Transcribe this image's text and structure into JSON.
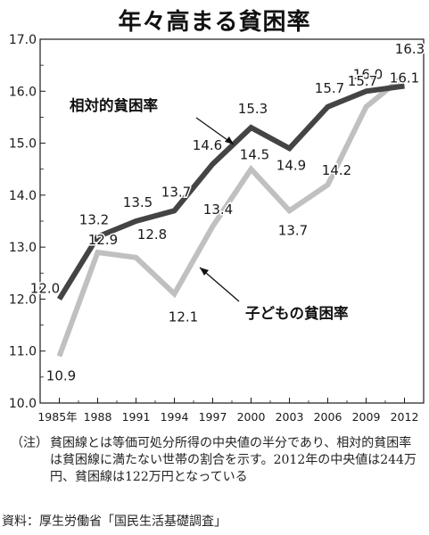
{
  "header": {
    "title": "年々高まる貧困率"
  },
  "chart_data": {
    "type": "line",
    "x": [
      "1985年",
      "1988",
      "1991",
      "1994",
      "1997",
      "2000",
      "2003",
      "2006",
      "2009",
      "2012"
    ],
    "ylim": [
      10.0,
      17.0
    ],
    "yticks": [
      "10.0",
      "11.0",
      "12.0",
      "13.0",
      "14.0",
      "15.0",
      "16.0",
      "17.0"
    ],
    "grid": false,
    "series": [
      {
        "name": "相対的貧困率",
        "color": "#444444",
        "values": [
          12.0,
          13.2,
          13.5,
          13.7,
          14.6,
          15.3,
          14.9,
          15.7,
          16.0,
          16.1
        ],
        "labels": [
          "12.0",
          "13.2",
          "13.5",
          "13.7",
          "14.6",
          "15.3",
          "14.9",
          "15.7",
          "16.0",
          "16.1"
        ]
      },
      {
        "name": "子どもの貧困率",
        "color": "#c0c0c0",
        "values": [
          10.9,
          12.9,
          12.8,
          12.1,
          13.4,
          14.5,
          13.7,
          14.2,
          15.7,
          16.3
        ],
        "labels": [
          "10.9",
          "12.9",
          "",
          "12.1",
          "13.4",
          "14.5",
          "13.7",
          "14.2",
          "15.7",
          "16.3"
        ]
      }
    ],
    "extra_labels": [
      "12.8"
    ]
  },
  "note": {
    "tag": "（注）",
    "text": "貧困線とは等価可処分所得の中央値の半分であり、相対的貧困率は貧困線に満たない世帯の割合を示す。2012年の中央値は244万円、貧困線は122万円となっている"
  },
  "source": "資料：厚生労働省「国民生活基礎調査」"
}
